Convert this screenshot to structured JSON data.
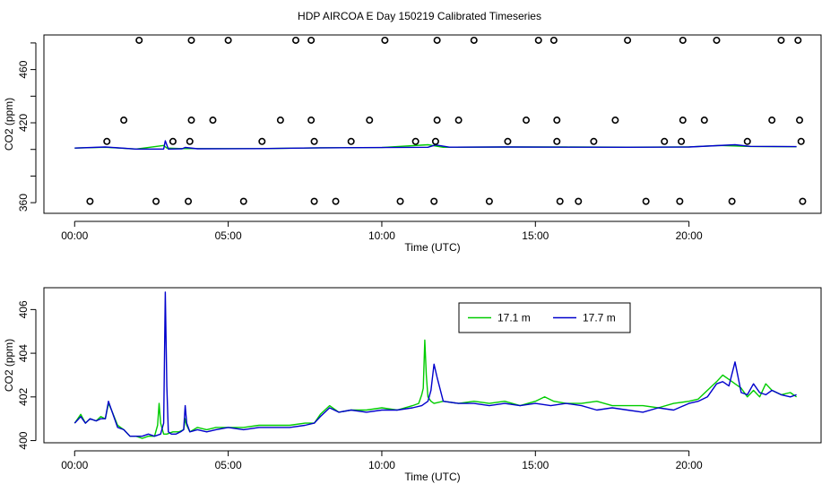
{
  "figure": {
    "title": "HDP AIRCOA E  Day 150219  Calibrated Timeseries"
  },
  "chart_data": [
    {
      "type": "line",
      "xlabel": "Time (UTC)",
      "ylabel": "CO2 (ppm)",
      "xlim": [
        -1.0,
        24.3
      ],
      "ylim": [
        352,
        486
      ],
      "x_ticks": [
        0,
        5,
        10,
        15,
        20
      ],
      "x_tick_labels": [
        "00:00",
        "05:00",
        "10:00",
        "15:00",
        "20:00"
      ],
      "y_ticks": [
        360,
        380,
        400,
        420,
        440,
        460,
        480
      ],
      "y_tick_labels": [
        "360",
        "",
        "",
        "420",
        "",
        "460",
        ""
      ],
      "grid": false,
      "series": [
        {
          "color": "#00cc00",
          "x": [
            0.0,
            1.0,
            2.0,
            2.9,
            3.0,
            3.5,
            4.0,
            6.0,
            8.0,
            10.0,
            11.5,
            12.0,
            14.0,
            16.0,
            18.0,
            20.0,
            21.0,
            22.0,
            23.5
          ],
          "y": [
            401.0,
            401.6,
            400.3,
            403.0,
            401.0,
            400.6,
            400.6,
            400.6,
            401.2,
            401.4,
            403.5,
            401.6,
            401.8,
            401.8,
            401.7,
            401.9,
            403.0,
            402.2,
            402.0
          ]
        },
        {
          "color": "#0000cc",
          "x": [
            0.0,
            1.0,
            2.0,
            2.9,
            2.95,
            3.05,
            3.5,
            3.6,
            4.0,
            6.0,
            8.0,
            10.0,
            11.5,
            11.75,
            12.2,
            14.0,
            16.0,
            18.0,
            20.0,
            21.5,
            22.0,
            23.5
          ],
          "y": [
            401.0,
            401.8,
            400.3,
            400.3,
            406.5,
            400.3,
            400.5,
            401.5,
            400.5,
            400.6,
            401.2,
            401.4,
            401.6,
            403.4,
            401.7,
            401.8,
            401.7,
            401.6,
            401.8,
            403.5,
            402.3,
            402.1
          ]
        }
      ],
      "markers": {
        "style": "open-circle",
        "points": [
          {
            "x": 2.1,
            "y": 482
          },
          {
            "x": 3.8,
            "y": 482
          },
          {
            "x": 5.0,
            "y": 482
          },
          {
            "x": 7.2,
            "y": 482
          },
          {
            "x": 7.7,
            "y": 482
          },
          {
            "x": 10.1,
            "y": 482
          },
          {
            "x": 11.8,
            "y": 482
          },
          {
            "x": 13.0,
            "y": 482
          },
          {
            "x": 15.1,
            "y": 482
          },
          {
            "x": 15.6,
            "y": 482
          },
          {
            "x": 18.0,
            "y": 482
          },
          {
            "x": 19.8,
            "y": 482
          },
          {
            "x": 20.9,
            "y": 482
          },
          {
            "x": 23.0,
            "y": 482
          },
          {
            "x": 23.55,
            "y": 482
          },
          {
            "x": 1.6,
            "y": 422
          },
          {
            "x": 3.8,
            "y": 422
          },
          {
            "x": 4.5,
            "y": 422
          },
          {
            "x": 6.7,
            "y": 422
          },
          {
            "x": 7.7,
            "y": 422
          },
          {
            "x": 9.6,
            "y": 422
          },
          {
            "x": 11.8,
            "y": 422
          },
          {
            "x": 12.5,
            "y": 422
          },
          {
            "x": 14.7,
            "y": 422
          },
          {
            "x": 15.7,
            "y": 422
          },
          {
            "x": 17.6,
            "y": 422
          },
          {
            "x": 19.8,
            "y": 422
          },
          {
            "x": 20.5,
            "y": 422
          },
          {
            "x": 22.7,
            "y": 422
          },
          {
            "x": 23.6,
            "y": 422
          },
          {
            "x": 1.05,
            "y": 406
          },
          {
            "x": 3.2,
            "y": 406
          },
          {
            "x": 3.75,
            "y": 406
          },
          {
            "x": 6.1,
            "y": 406
          },
          {
            "x": 7.8,
            "y": 406
          },
          {
            "x": 9.0,
            "y": 406
          },
          {
            "x": 11.1,
            "y": 406
          },
          {
            "x": 11.75,
            "y": 406
          },
          {
            "x": 14.1,
            "y": 406
          },
          {
            "x": 15.7,
            "y": 406
          },
          {
            "x": 16.9,
            "y": 406
          },
          {
            "x": 19.2,
            "y": 406
          },
          {
            "x": 19.75,
            "y": 406
          },
          {
            "x": 21.9,
            "y": 406
          },
          {
            "x": 23.65,
            "y": 406
          },
          {
            "x": 0.5,
            "y": 361
          },
          {
            "x": 2.65,
            "y": 361
          },
          {
            "x": 3.7,
            "y": 361
          },
          {
            "x": 5.5,
            "y": 361
          },
          {
            "x": 7.8,
            "y": 361
          },
          {
            "x": 8.5,
            "y": 361
          },
          {
            "x": 10.6,
            "y": 361
          },
          {
            "x": 11.7,
            "y": 361
          },
          {
            "x": 13.5,
            "y": 361
          },
          {
            "x": 15.8,
            "y": 361
          },
          {
            "x": 16.4,
            "y": 361
          },
          {
            "x": 18.6,
            "y": 361
          },
          {
            "x": 19.7,
            "y": 361
          },
          {
            "x": 21.4,
            "y": 361
          },
          {
            "x": 23.7,
            "y": 361
          }
        ]
      }
    },
    {
      "type": "line",
      "xlabel": "Time (UTC)",
      "ylabel": "CO2 (ppm)",
      "xlim": [
        -1.0,
        24.3
      ],
      "ylim": [
        399.9,
        407.0
      ],
      "x_ticks": [
        0,
        5,
        10,
        15,
        20
      ],
      "x_tick_labels": [
        "00:00",
        "05:00",
        "10:00",
        "15:00",
        "20:00"
      ],
      "y_ticks": [
        400,
        402,
        404,
        406
      ],
      "y_tick_labels": [
        "400",
        "402",
        "404",
        "406"
      ],
      "grid": false,
      "legend": {
        "placement": "top-right"
      },
      "series": [
        {
          "name": "17.1 m",
          "color": "#00cc00",
          "x": [
            0.0,
            0.2,
            0.35,
            0.5,
            0.7,
            0.85,
            1.0,
            1.1,
            1.2,
            1.4,
            1.6,
            1.8,
            2.0,
            2.2,
            2.4,
            2.6,
            2.7,
            2.75,
            2.8,
            2.9,
            3.0,
            3.2,
            3.4,
            3.55,
            3.6,
            3.65,
            3.75,
            4.0,
            4.3,
            4.6,
            5.0,
            5.5,
            6.0,
            6.5,
            7.0,
            7.5,
            7.8,
            8.0,
            8.3,
            8.6,
            9.0,
            9.5,
            10.0,
            10.5,
            11.0,
            11.2,
            11.3,
            11.35,
            11.4,
            11.45,
            11.5,
            11.6,
            11.7,
            12.0,
            12.5,
            13.0,
            13.5,
            14.0,
            14.5,
            15.0,
            15.3,
            15.6,
            16.0,
            16.5,
            17.0,
            17.5,
            18.0,
            18.5,
            19.0,
            19.5,
            20.0,
            20.3,
            20.6,
            20.9,
            21.1,
            21.3,
            21.5,
            21.7,
            21.9,
            22.1,
            22.3,
            22.5,
            22.7,
            23.0,
            23.3,
            23.5
          ],
          "y": [
            400.8,
            401.2,
            400.8,
            401.0,
            400.9,
            401.1,
            401.0,
            401.7,
            401.4,
            400.7,
            400.5,
            400.2,
            400.2,
            400.1,
            400.2,
            400.2,
            400.7,
            401.7,
            400.8,
            400.3,
            400.3,
            400.4,
            400.4,
            400.5,
            401.0,
            400.7,
            400.4,
            400.6,
            400.5,
            400.6,
            400.6,
            400.6,
            400.7,
            400.7,
            400.7,
            400.8,
            400.8,
            401.2,
            401.6,
            401.3,
            401.4,
            401.4,
            401.5,
            401.4,
            401.6,
            401.7,
            402.1,
            402.4,
            404.6,
            403.0,
            402.0,
            401.8,
            401.7,
            401.8,
            401.7,
            401.8,
            401.7,
            401.8,
            401.6,
            401.8,
            402.0,
            401.8,
            401.7,
            401.7,
            401.8,
            401.6,
            401.6,
            401.6,
            401.5,
            401.7,
            401.8,
            401.9,
            402.3,
            402.7,
            403.0,
            402.8,
            402.6,
            402.4,
            402.0,
            402.3,
            402.0,
            402.6,
            402.3,
            402.1,
            402.2,
            402.0
          ]
        },
        {
          "name": "17.7 m",
          "color": "#0000cc",
          "x": [
            0.0,
            0.2,
            0.35,
            0.5,
            0.7,
            0.85,
            1.0,
            1.1,
            1.2,
            1.4,
            1.6,
            1.8,
            2.0,
            2.2,
            2.4,
            2.6,
            2.8,
            2.9,
            2.95,
            3.0,
            3.05,
            3.15,
            3.3,
            3.45,
            3.55,
            3.6,
            3.65,
            3.75,
            4.0,
            4.3,
            4.6,
            5.0,
            5.5,
            6.0,
            6.5,
            7.0,
            7.5,
            7.8,
            8.0,
            8.3,
            8.6,
            9.0,
            9.5,
            10.0,
            10.5,
            11.0,
            11.3,
            11.5,
            11.6,
            11.7,
            11.8,
            12.0,
            12.5,
            13.0,
            13.5,
            14.0,
            14.5,
            15.0,
            15.5,
            16.0,
            16.5,
            17.0,
            17.5,
            18.0,
            18.5,
            19.0,
            19.5,
            20.0,
            20.3,
            20.6,
            20.9,
            21.1,
            21.3,
            21.5,
            21.7,
            21.9,
            22.1,
            22.3,
            22.5,
            22.7,
            23.0,
            23.3,
            23.5
          ],
          "y": [
            400.8,
            401.1,
            400.8,
            401.0,
            400.9,
            401.0,
            401.0,
            401.8,
            401.4,
            400.6,
            400.5,
            400.2,
            400.2,
            400.2,
            400.3,
            400.2,
            400.3,
            400.8,
            406.8,
            402.5,
            400.4,
            400.3,
            400.3,
            400.4,
            400.5,
            401.6,
            400.8,
            400.4,
            400.5,
            400.4,
            400.5,
            400.6,
            400.5,
            400.6,
            400.6,
            400.6,
            400.7,
            400.8,
            401.1,
            401.5,
            401.3,
            401.4,
            401.3,
            401.4,
            401.4,
            401.5,
            401.6,
            401.8,
            402.3,
            403.5,
            402.9,
            401.8,
            401.7,
            401.7,
            401.6,
            401.7,
            401.6,
            401.7,
            401.6,
            401.7,
            401.6,
            401.4,
            401.5,
            401.4,
            401.3,
            401.5,
            401.4,
            401.7,
            401.8,
            402.0,
            402.6,
            402.7,
            402.5,
            403.6,
            402.2,
            402.1,
            402.6,
            402.2,
            402.1,
            402.3,
            402.1,
            402.0,
            402.1
          ]
        }
      ]
    }
  ]
}
